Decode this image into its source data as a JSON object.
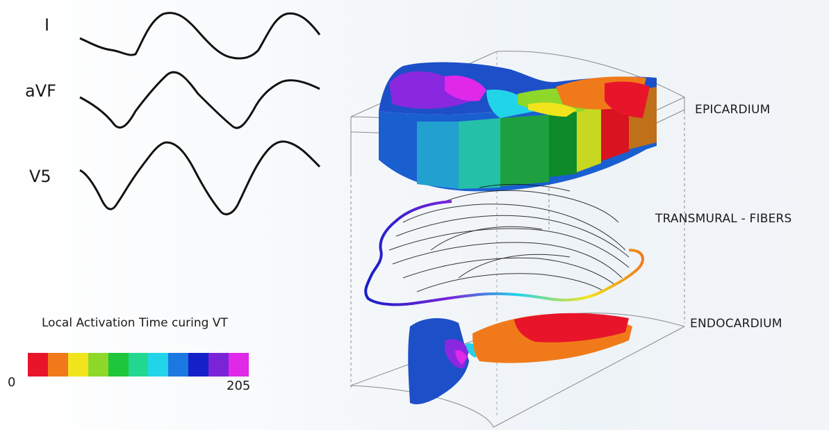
{
  "leads": [
    {
      "name": "I"
    },
    {
      "name": "aVF"
    },
    {
      "name": "V5"
    }
  ],
  "layers": {
    "epicardium": "EPICARDIUM",
    "transmural": "TRANSMURAL - FIBERS",
    "endocardium": "ENDOCARDIUM"
  },
  "color_scale": {
    "title": "Local Activation Time curing VT",
    "min": "0",
    "max": "205",
    "colors": [
      "#e8142a",
      "#f07a1a",
      "#f2e41c",
      "#8ed82a",
      "#1dc63a",
      "#22d890",
      "#22d4e8",
      "#1a78e0",
      "#1420c8",
      "#7a24d8",
      "#e028e8"
    ]
  }
}
